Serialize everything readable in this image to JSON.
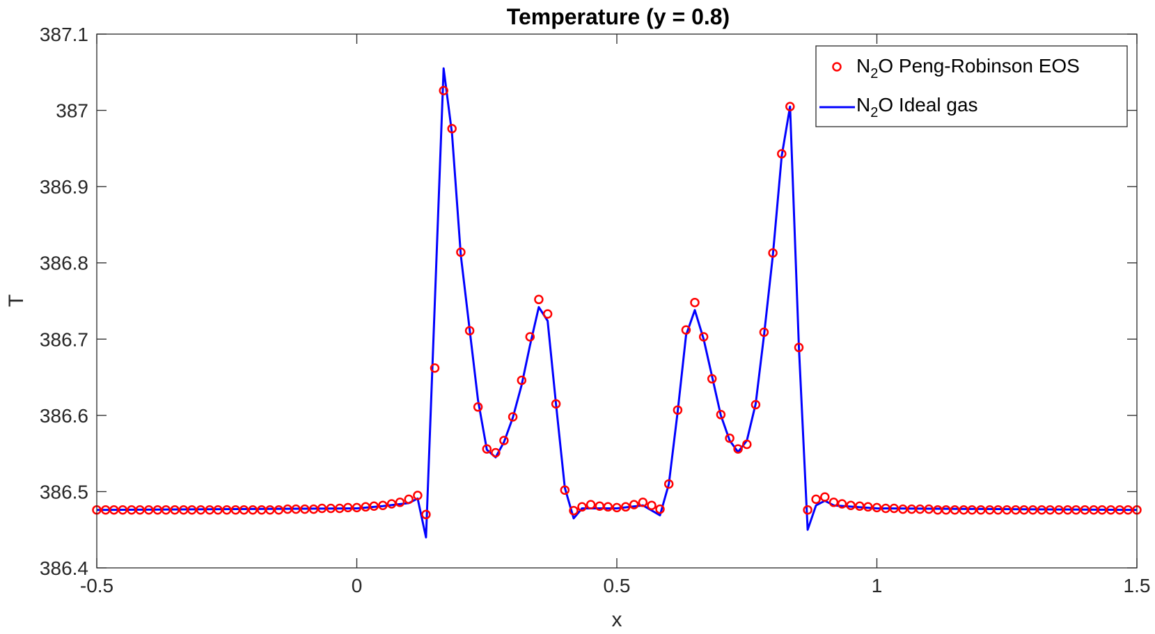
{
  "chart_data": {
    "type": "line",
    "title": "Temperature (y = 0.8)",
    "xlabel": "x",
    "ylabel": "T",
    "xlim": [
      -0.5,
      1.5
    ],
    "ylim": [
      386.4,
      387.1
    ],
    "xticks": [
      -0.5,
      0,
      0.5,
      1,
      1.5
    ],
    "xtick_labels": [
      "-0.5",
      "0",
      "0.5",
      "1",
      "1.5"
    ],
    "yticks": [
      386.4,
      386.5,
      386.6,
      386.7,
      386.8,
      386.9,
      387,
      387.1
    ],
    "ytick_labels": [
      "386.4",
      "386.5",
      "386.6",
      "386.7",
      "386.8",
      "386.9",
      "387",
      "387.1"
    ],
    "grid": false,
    "legend_position": "top-right",
    "legend": {
      "ideal_label_main": "N",
      "ideal_label_sub": "2",
      "ideal_label_rest": "O Ideal gas",
      "pr_label_main": "N",
      "pr_label_sub": "2",
      "pr_label_rest": "O Peng-Robinson EOS"
    },
    "colors": {
      "ideal_gas": "#0000ff",
      "peng_robinson": "#ff0000"
    },
    "series": [
      {
        "name": "N2O Ideal gas",
        "style": "line",
        "x": [
          -0.5,
          0.0,
          0.05,
          0.1,
          0.117,
          0.133,
          0.167,
          0.183,
          0.2,
          0.233,
          0.25,
          0.267,
          0.283,
          0.3,
          0.317,
          0.333,
          0.35,
          0.367,
          0.383,
          0.4,
          0.417,
          0.433,
          0.5,
          0.55,
          0.583,
          0.6,
          0.617,
          0.633,
          0.65,
          0.667,
          0.7,
          0.717,
          0.733,
          0.75,
          0.767,
          0.783,
          0.8,
          0.817,
          0.833,
          0.85,
          0.867,
          0.883,
          0.9,
          0.917,
          1.0,
          1.5
        ],
        "y": [
          386.476,
          386.478,
          386.481,
          386.485,
          386.491,
          386.44,
          387.055,
          386.97,
          386.81,
          386.62,
          386.555,
          386.545,
          386.565,
          386.597,
          386.64,
          386.692,
          386.742,
          386.724,
          386.615,
          386.505,
          386.465,
          386.478,
          386.478,
          386.482,
          386.469,
          386.51,
          386.605,
          386.705,
          386.738,
          386.7,
          386.6,
          386.567,
          386.552,
          386.567,
          386.615,
          386.705,
          386.81,
          386.94,
          387.005,
          386.69,
          386.45,
          386.482,
          386.488,
          386.482,
          386.478,
          386.476
        ]
      },
      {
        "name": "N2O Peng-Robinson EOS",
        "style": "markers",
        "x": [
          -0.5,
          -0.483,
          -0.467,
          -0.45,
          -0.433,
          -0.417,
          -0.4,
          -0.383,
          -0.367,
          -0.35,
          -0.333,
          -0.317,
          -0.3,
          -0.283,
          -0.267,
          -0.25,
          -0.233,
          -0.217,
          -0.2,
          -0.183,
          -0.167,
          -0.15,
          -0.133,
          -0.117,
          -0.1,
          -0.083,
          -0.067,
          -0.05,
          -0.033,
          -0.017,
          0.0,
          0.017,
          0.033,
          0.05,
          0.067,
          0.083,
          0.1,
          0.117,
          0.133,
          0.15,
          0.167,
          0.183,
          0.2,
          0.217,
          0.233,
          0.25,
          0.267,
          0.283,
          0.3,
          0.317,
          0.333,
          0.35,
          0.367,
          0.383,
          0.4,
          0.417,
          0.433,
          0.45,
          0.467,
          0.483,
          0.5,
          0.517,
          0.533,
          0.55,
          0.567,
          0.583,
          0.6,
          0.617,
          0.633,
          0.65,
          0.667,
          0.683,
          0.7,
          0.717,
          0.733,
          0.75,
          0.767,
          0.783,
          0.8,
          0.817,
          0.833,
          0.85,
          0.867,
          0.883,
          0.9,
          0.917,
          0.933,
          0.95,
          0.967,
          0.983,
          1.0,
          1.017,
          1.033,
          1.05,
          1.067,
          1.083,
          1.1,
          1.117,
          1.133,
          1.15,
          1.167,
          1.183,
          1.2,
          1.217,
          1.233,
          1.25,
          1.267,
          1.283,
          1.3,
          1.317,
          1.333,
          1.35,
          1.367,
          1.383,
          1.4,
          1.417,
          1.433,
          1.45,
          1.467,
          1.483,
          1.5
        ],
        "y": [
          386.476,
          386.476,
          386.476,
          386.476,
          386.476,
          386.476,
          386.476,
          386.476,
          386.476,
          386.476,
          386.476,
          386.476,
          386.476,
          386.476,
          386.476,
          386.476,
          386.476,
          386.476,
          386.476,
          386.476,
          386.476,
          386.476,
          386.477,
          386.477,
          386.477,
          386.477,
          386.478,
          386.478,
          386.478,
          386.479,
          386.479,
          386.48,
          386.481,
          386.482,
          386.484,
          386.486,
          386.49,
          386.495,
          386.47,
          386.662,
          387.026,
          386.976,
          386.814,
          386.711,
          386.611,
          386.556,
          386.551,
          386.567,
          386.598,
          386.646,
          386.703,
          386.752,
          386.733,
          386.615,
          386.502,
          386.475,
          386.48,
          386.483,
          386.481,
          386.48,
          386.479,
          386.48,
          386.483,
          386.486,
          386.482,
          386.477,
          386.51,
          386.607,
          386.712,
          386.748,
          386.703,
          386.648,
          386.601,
          386.57,
          386.556,
          386.562,
          386.614,
          386.709,
          386.813,
          386.943,
          387.005,
          386.689,
          386.476,
          386.49,
          386.493,
          386.486,
          386.484,
          386.482,
          386.481,
          386.48,
          386.479,
          386.478,
          386.478,
          386.477,
          386.477,
          386.477,
          386.477,
          386.476,
          386.476,
          386.476,
          386.476,
          386.476,
          386.476,
          386.476,
          386.476,
          386.476,
          386.476,
          386.476,
          386.476,
          386.476,
          386.476,
          386.476,
          386.476,
          386.476,
          386.476,
          386.476,
          386.476,
          386.476,
          386.476,
          386.476,
          386.476
        ]
      }
    ]
  }
}
